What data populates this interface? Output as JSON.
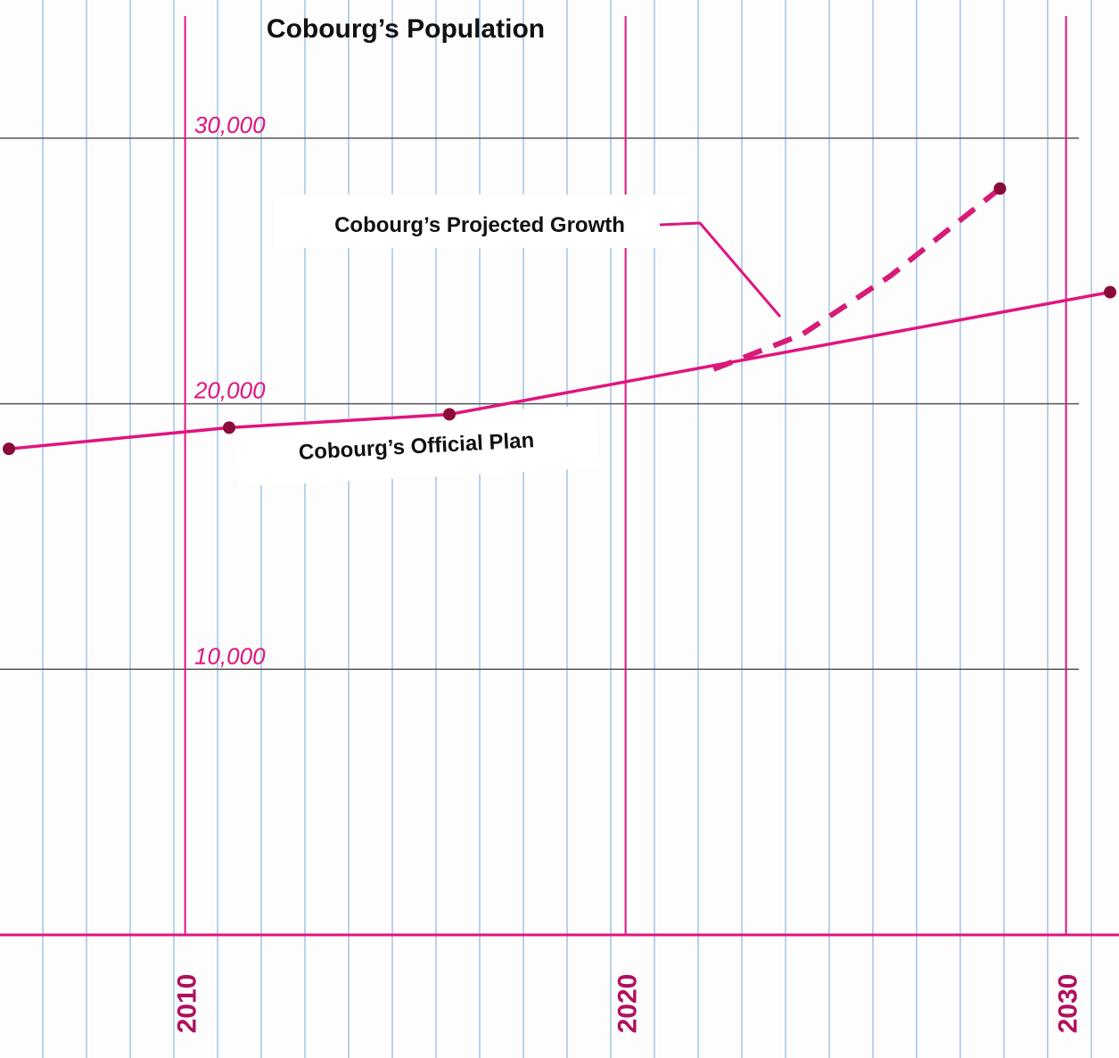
{
  "chart_data": {
    "type": "line",
    "title": "Cobourg’s Population",
    "series": [
      {
        "name": "Cobourg’s Official Plan",
        "color": "#e0157f",
        "dashed": false,
        "x": [
          2006,
          2011,
          2016,
          2031
        ],
        "values": [
          18300,
          19100,
          19600,
          24200
        ]
      },
      {
        "name": "Cobourg’s Projected Growth",
        "color": "#d81a78",
        "dashed": true,
        "x": [
          2022,
          2024,
          2026,
          2028.5
        ],
        "values": [
          21300,
          22600,
          24800,
          28100
        ]
      }
    ],
    "xlim": [
      2006,
      2031
    ],
    "xticks": [
      2010,
      2020,
      2030
    ],
    "ylim": [
      0,
      35000
    ],
    "yticks": [
      {
        "value": 10000,
        "label": "10,000"
      },
      {
        "value": 20000,
        "label": "20,000"
      },
      {
        "value": 30000,
        "label": "30,000"
      }
    ],
    "grid": true
  }
}
